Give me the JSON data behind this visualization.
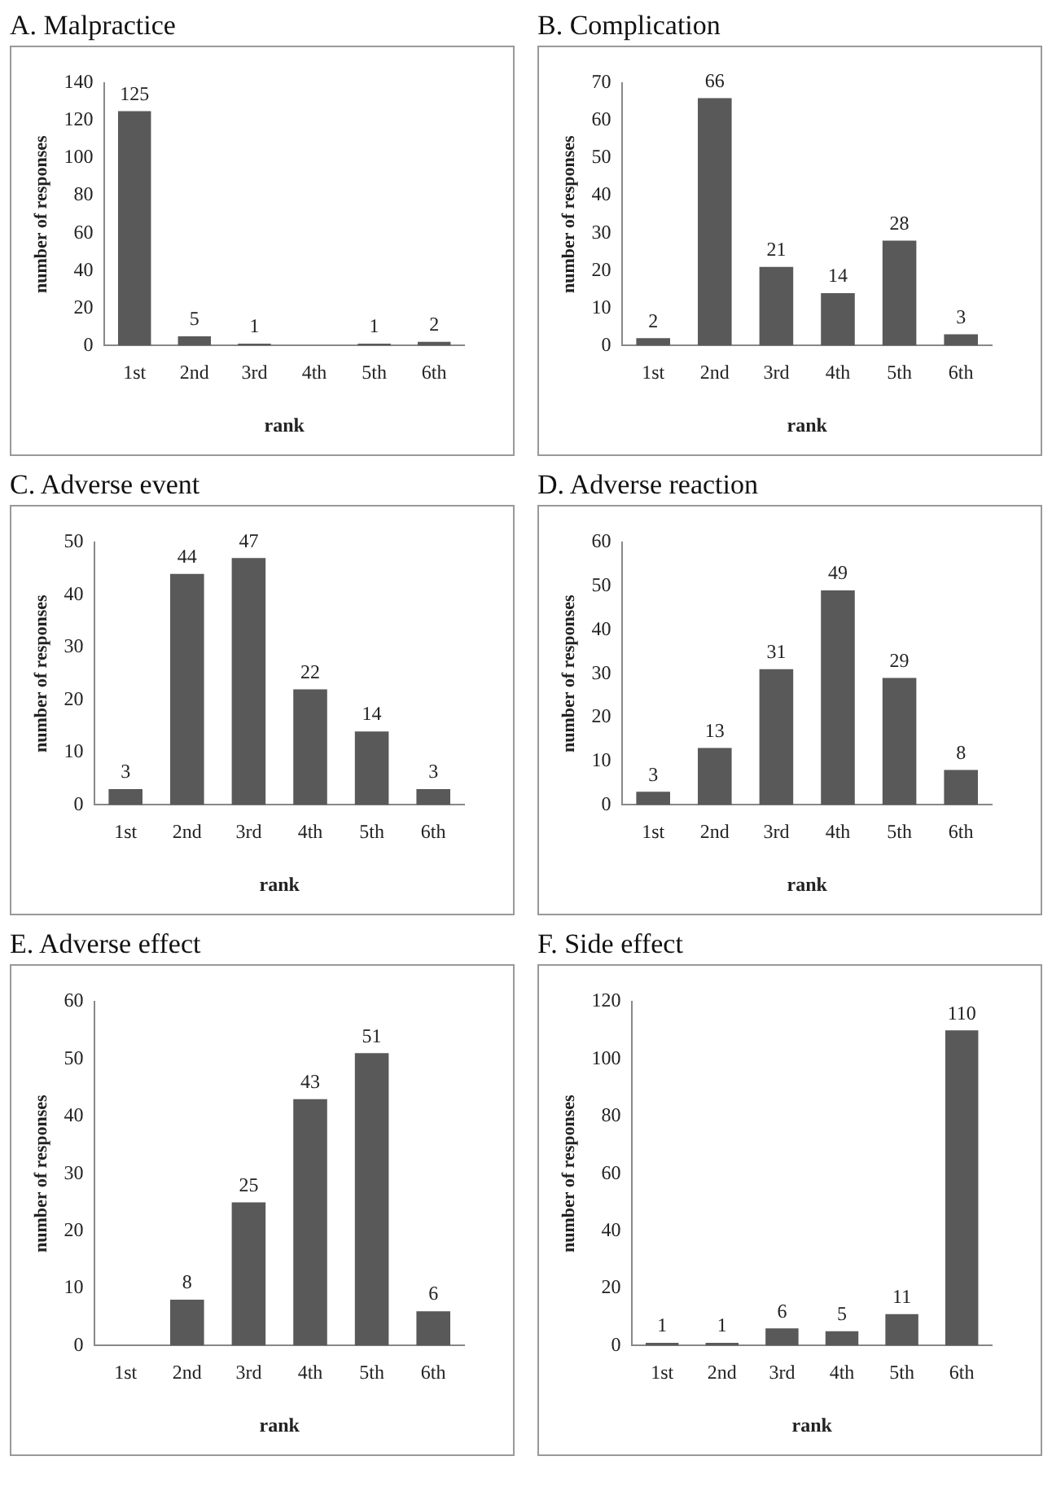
{
  "chart_data": [
    {
      "type": "bar",
      "title": "A. Malpractice",
      "xlabel": "rank",
      "ylabel": "number of responses",
      "categories": [
        "1st",
        "2nd",
        "3rd",
        "4th",
        "5th",
        "6th"
      ],
      "values": [
        125,
        5,
        1,
        0,
        1,
        2
      ],
      "value_labels": [
        "125",
        "5",
        "1",
        null,
        "1",
        "2"
      ],
      "color": "#595959",
      "ylim": [
        0,
        140
      ],
      "yticks": [
        0,
        20,
        40,
        60,
        80,
        100,
        120,
        140
      ]
    },
    {
      "type": "bar",
      "title": "B. Complication",
      "xlabel": "rank",
      "ylabel": "number of responses",
      "categories": [
        "1st",
        "2nd",
        "3rd",
        "4th",
        "5th",
        "6th"
      ],
      "values": [
        2,
        66,
        21,
        14,
        28,
        3
      ],
      "data_labels": true,
      "color": "#595959",
      "ylim": [
        0,
        70
      ],
      "yticks": [
        0,
        10,
        20,
        30,
        40,
        50,
        60,
        70
      ]
    },
    {
      "type": "bar",
      "title": "C. Adverse event",
      "xlabel": "rank",
      "ylabel": "number of responses",
      "categories": [
        "1st",
        "2nd",
        "3rd",
        "4th",
        "5th",
        "6th"
      ],
      "values": [
        3,
        44,
        47,
        22,
        14,
        3
      ],
      "data_labels": true,
      "color": "#595959",
      "ylim": [
        0,
        50
      ],
      "yticks": [
        0,
        10,
        20,
        30,
        40,
        50
      ]
    },
    {
      "type": "bar",
      "title": "D. Adverse reaction",
      "xlabel": "rank",
      "ylabel": "number of responses",
      "categories": [
        "1st",
        "2nd",
        "3rd",
        "4th",
        "5th",
        "6th"
      ],
      "values": [
        3,
        13,
        31,
        49,
        29,
        8
      ],
      "data_labels": true,
      "color": "#595959",
      "ylim": [
        0,
        60
      ],
      "yticks": [
        0,
        10,
        20,
        30,
        40,
        50,
        60
      ]
    },
    {
      "type": "bar",
      "title": "E. Adverse effect",
      "xlabel": "rank",
      "ylabel": "number of responses",
      "categories": [
        "1st",
        "2nd",
        "3rd",
        "4th",
        "5th",
        "6th"
      ],
      "values": [
        0,
        8,
        25,
        43,
        51,
        6
      ],
      "value_labels": [
        null,
        "8",
        "25",
        "43",
        "51",
        "6"
      ],
      "color": "#595959",
      "ylim": [
        0,
        60
      ],
      "yticks": [
        0,
        10,
        20,
        30,
        40,
        50,
        60
      ]
    },
    {
      "type": "bar",
      "title": "F. Side effect",
      "xlabel": "rank",
      "ylabel": "number of responses",
      "categories": [
        "1st",
        "2nd",
        "3rd",
        "4th",
        "5th",
        "6th"
      ],
      "values": [
        1,
        1,
        6,
        5,
        11,
        110
      ],
      "data_labels": true,
      "color": "#595959",
      "ylim": [
        0,
        120
      ],
      "yticks": [
        0,
        20,
        40,
        60,
        80,
        100,
        120
      ]
    }
  ]
}
